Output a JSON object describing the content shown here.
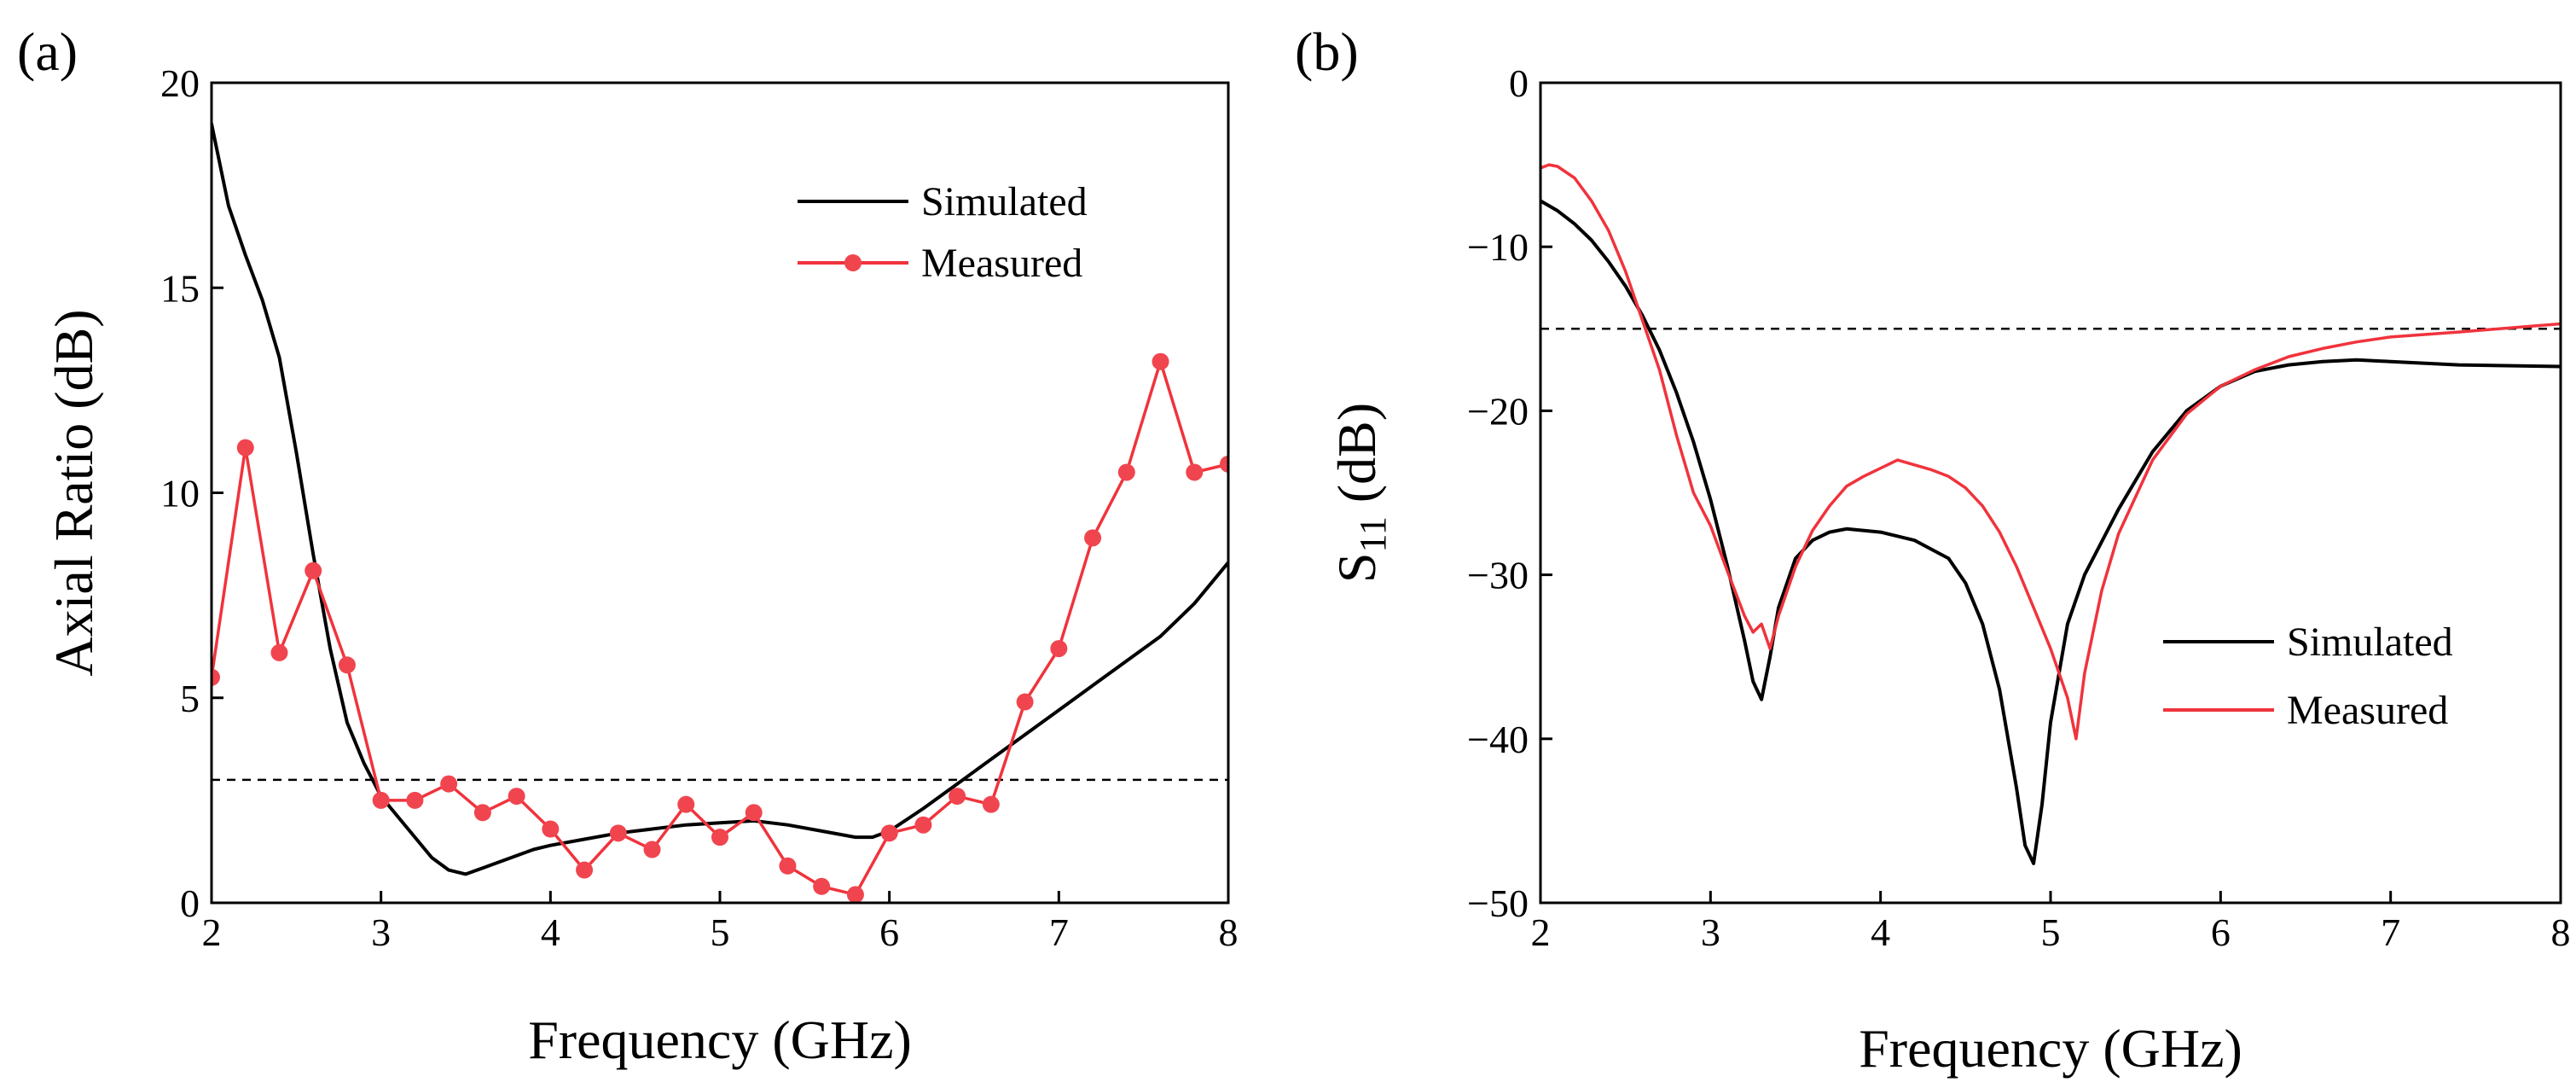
{
  "colors": {
    "simulated": "#000000",
    "measured": "#f0333c",
    "measured_marker": "#f0454f"
  },
  "chart_data": [
    {
      "type": "line",
      "panel_label": "(a)",
      "title": "",
      "xlabel": "Frequency (GHz)",
      "ylabel": "Axial Ratio (dB)",
      "xlim": [
        2,
        8
      ],
      "ylim": [
        0,
        20
      ],
      "xticks": [
        2,
        3,
        4,
        5,
        6,
        7,
        8
      ],
      "yticks": [
        0,
        5,
        10,
        15,
        20
      ],
      "grid": false,
      "legend": "top-right",
      "reference_line": 3,
      "series": [
        {
          "name": "Simulated",
          "marker": false,
          "x": [
            2.0,
            2.1,
            2.2,
            2.3,
            2.4,
            2.5,
            2.6,
            2.7,
            2.8,
            2.9,
            3.0,
            3.1,
            3.2,
            3.3,
            3.4,
            3.5,
            3.6,
            3.7,
            3.8,
            3.9,
            4.0,
            4.2,
            4.4,
            4.6,
            4.8,
            5.0,
            5.2,
            5.4,
            5.6,
            5.8,
            5.9,
            6.0,
            6.2,
            6.4,
            6.6,
            6.8,
            7.0,
            7.2,
            7.4,
            7.6,
            7.8,
            8.0
          ],
          "y": [
            19.0,
            17.0,
            15.8,
            14.7,
            13.3,
            11.0,
            8.5,
            6.2,
            4.4,
            3.4,
            2.6,
            2.1,
            1.6,
            1.1,
            0.8,
            0.7,
            0.85,
            1.0,
            1.15,
            1.3,
            1.4,
            1.55,
            1.7,
            1.8,
            1.9,
            1.95,
            2.0,
            1.9,
            1.75,
            1.6,
            1.6,
            1.75,
            2.3,
            2.9,
            3.5,
            4.1,
            4.7,
            5.3,
            5.9,
            6.5,
            7.3,
            8.3
          ]
        },
        {
          "name": "Measured",
          "marker": true,
          "x": [
            2.0,
            2.2,
            2.4,
            2.6,
            2.8,
            3.0,
            3.2,
            3.4,
            3.6,
            3.8,
            4.0,
            4.2,
            4.4,
            4.6,
            4.8,
            5.0,
            5.2,
            5.4,
            5.6,
            5.8,
            6.0,
            6.2,
            6.4,
            6.6,
            6.8,
            7.0,
            7.2,
            7.4,
            7.6,
            7.8,
            8.0
          ],
          "y": [
            5.5,
            11.1,
            6.1,
            8.1,
            5.8,
            2.5,
            2.5,
            2.9,
            2.2,
            2.6,
            1.8,
            0.8,
            1.7,
            1.3,
            2.4,
            1.6,
            2.2,
            0.9,
            0.4,
            0.2,
            1.7,
            1.9,
            2.6,
            2.4,
            4.9,
            6.2,
            8.9,
            10.5,
            13.2,
            10.5,
            10.7
          ]
        }
      ]
    },
    {
      "type": "line",
      "panel_label": "(b)",
      "title": "",
      "xlabel": "Frequency (GHz)",
      "ylabel": "S",
      "ylabel_subscript": "11",
      "ylabel_suffix": " (dB)",
      "xlim": [
        2,
        8
      ],
      "ylim": [
        -50,
        0
      ],
      "xticks": [
        2,
        3,
        4,
        5,
        6,
        7,
        8
      ],
      "yticks": [
        0,
        -10,
        -20,
        -30,
        -40,
        -50
      ],
      "ytick_labels": [
        "0",
        "−10",
        "−20",
        "−30",
        "−40",
        "−50"
      ],
      "grid": false,
      "legend": "bottom-right",
      "reference_line": -15,
      "series": [
        {
          "name": "Simulated",
          "marker": false,
          "x": [
            2.0,
            2.1,
            2.2,
            2.3,
            2.4,
            2.5,
            2.6,
            2.7,
            2.8,
            2.9,
            3.0,
            3.1,
            3.2,
            3.25,
            3.3,
            3.35,
            3.4,
            3.5,
            3.6,
            3.7,
            3.8,
            4.0,
            4.2,
            4.4,
            4.5,
            4.6,
            4.7,
            4.8,
            4.85,
            4.9,
            4.95,
            5.0,
            5.1,
            5.2,
            5.4,
            5.6,
            5.8,
            6.0,
            6.2,
            6.4,
            6.6,
            6.8,
            7.0,
            7.4,
            8.0
          ],
          "y": [
            -7.2,
            -7.8,
            -8.6,
            -9.6,
            -10.9,
            -12.4,
            -14.2,
            -16.3,
            -18.9,
            -21.9,
            -25.4,
            -29.5,
            -34.0,
            -36.5,
            -37.6,
            -35.0,
            -32.0,
            -29.0,
            -27.9,
            -27.4,
            -27.2,
            -27.4,
            -27.9,
            -29.0,
            -30.5,
            -33.0,
            -37.0,
            -43.0,
            -46.5,
            -47.6,
            -44.0,
            -39.0,
            -33.0,
            -30.0,
            -26.0,
            -22.5,
            -20.0,
            -18.5,
            -17.6,
            -17.2,
            -17.0,
            -16.9,
            -17.0,
            -17.2,
            -17.3
          ]
        },
        {
          "name": "Measured",
          "marker": false,
          "x": [
            2.0,
            2.05,
            2.1,
            2.2,
            2.3,
            2.4,
            2.5,
            2.6,
            2.7,
            2.8,
            2.9,
            3.0,
            3.1,
            3.2,
            3.25,
            3.3,
            3.35,
            3.4,
            3.5,
            3.6,
            3.7,
            3.8,
            3.9,
            4.0,
            4.1,
            4.2,
            4.3,
            4.4,
            4.5,
            4.6,
            4.7,
            4.8,
            4.9,
            5.0,
            5.05,
            5.1,
            5.15,
            5.2,
            5.3,
            5.4,
            5.6,
            5.8,
            6.0,
            6.2,
            6.4,
            6.6,
            6.8,
            7.0,
            7.4,
            8.0
          ],
          "y": [
            -5.2,
            -5.0,
            -5.1,
            -5.8,
            -7.2,
            -9.0,
            -11.5,
            -14.5,
            -17.5,
            -21.5,
            -25.0,
            -27.0,
            -29.8,
            -32.5,
            -33.5,
            -33.0,
            -34.5,
            -32.5,
            -29.5,
            -27.3,
            -25.8,
            -24.6,
            -24.0,
            -23.5,
            -23.0,
            -23.3,
            -23.6,
            -24.0,
            -24.7,
            -25.8,
            -27.4,
            -29.5,
            -32.0,
            -34.5,
            -36.0,
            -37.5,
            -40.0,
            -36.0,
            -31.0,
            -27.5,
            -23.0,
            -20.2,
            -18.5,
            -17.5,
            -16.7,
            -16.2,
            -15.8,
            -15.5,
            -15.2,
            -14.7
          ]
        }
      ]
    }
  ]
}
